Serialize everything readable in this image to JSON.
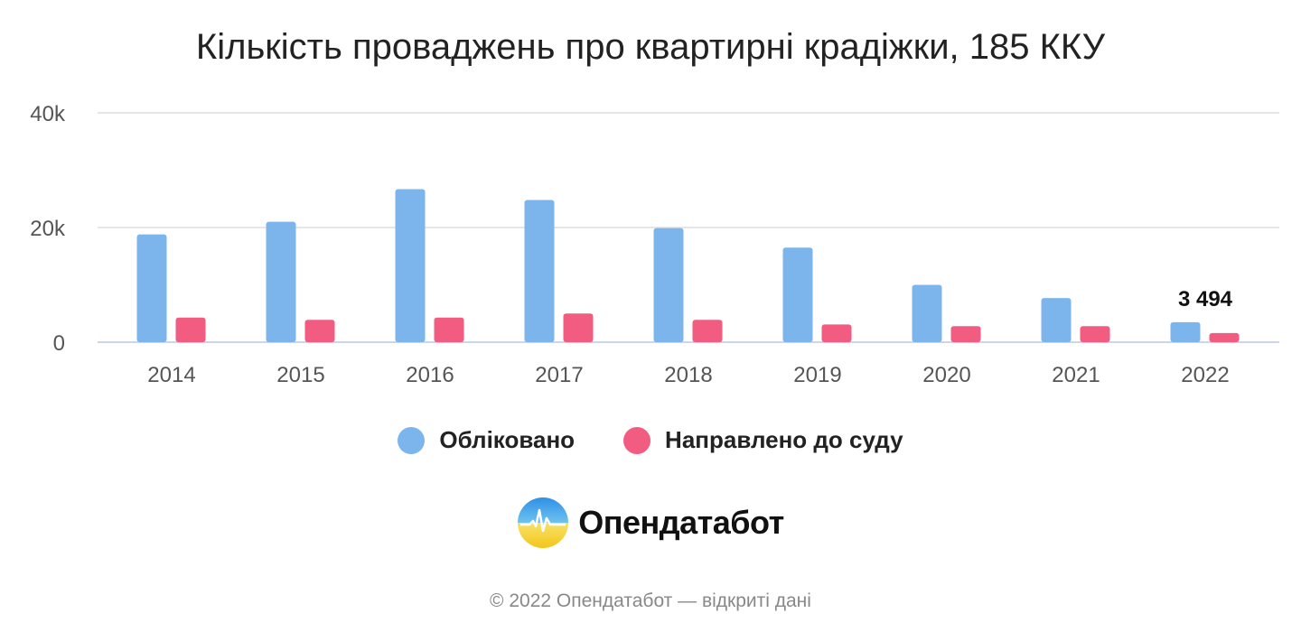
{
  "title": "Кількість проваджень про квартирні крадіжки, 185 ККУ",
  "chart_data": {
    "type": "bar",
    "categories": [
      "2014",
      "2015",
      "2016",
      "2017",
      "2018",
      "2019",
      "2020",
      "2021",
      "2022"
    ],
    "series": [
      {
        "name": "Обліковано",
        "color": "#7cb5ec",
        "values": [
          18800,
          21000,
          26700,
          24800,
          19900,
          16500,
          10000,
          7700,
          3494
        ]
      },
      {
        "name": "Направлено до суду",
        "color": "#f15c80",
        "values": [
          4300,
          3900,
          4300,
          5000,
          3900,
          3100,
          2800,
          2800,
          1600
        ]
      }
    ],
    "ylim": [
      0,
      40000
    ],
    "yticks": [
      {
        "value": 0,
        "label": "0"
      },
      {
        "value": 20000,
        "label": "20k"
      },
      {
        "value": 40000,
        "label": "40k"
      }
    ],
    "annotations": [
      {
        "category": "2022",
        "series": 0,
        "text": "3 494"
      }
    ],
    "grid": true,
    "legend_position": "bottom-center"
  },
  "logo": {
    "text": "Опендатабот",
    "icon": "opendatabot-logo-icon"
  },
  "footer": "© 2022 Опендатабот — відкриті дані"
}
